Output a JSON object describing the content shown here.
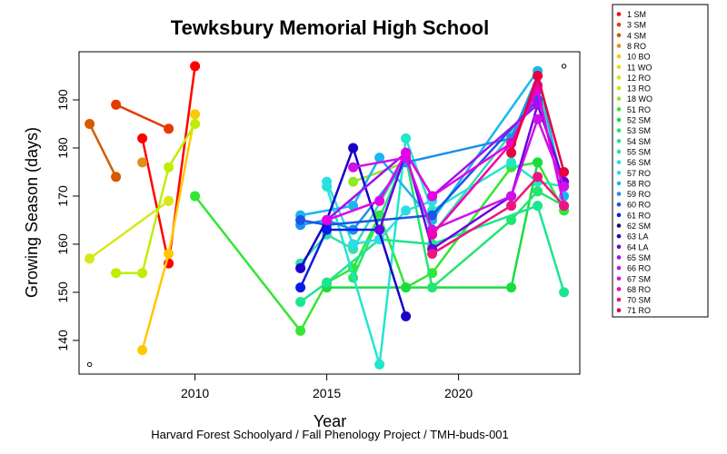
{
  "chart_data": {
    "type": "line",
    "title": "Tewksbury Memorial High School",
    "xlabel": "Year",
    "ylabel": "Growing Season (days)",
    "caption": "Harvard Forest Schoolyard / Fall Phenology Project / TMH-buds-001",
    "xlim": [
      2005.6,
      2024.6
    ],
    "ylim": [
      133,
      200
    ],
    "xticks": [
      2010,
      2015,
      2020
    ],
    "yticks": [
      140,
      150,
      160,
      170,
      180,
      190
    ],
    "grid": false,
    "legend_position": "right-top",
    "reference_points": [
      {
        "x": 2006,
        "y": 135
      },
      {
        "x": 2024,
        "y": 197
      }
    ],
    "series": [
      {
        "name": "1 SM",
        "color": "#FF0000",
        "points": [
          [
            2008,
            182
          ],
          [
            2009,
            156
          ],
          [
            2010,
            197
          ]
        ]
      },
      {
        "name": "3 SM",
        "color": "#E63A00",
        "points": [
          [
            2007,
            189
          ],
          [
            2009,
            184
          ]
        ]
      },
      {
        "name": "4 SM",
        "color": "#D65A00",
        "points": [
          [
            2006,
            185
          ],
          [
            2007,
            174
          ]
        ]
      },
      {
        "name": "8 RO",
        "color": "#E0901A",
        "points": [
          [
            2008,
            177
          ]
        ]
      },
      {
        "name": "10 BO",
        "color": "#FFC800",
        "points": [
          [
            2008,
            138
          ],
          [
            2009,
            158
          ],
          [
            2010,
            187
          ]
        ]
      },
      {
        "name": "11 WO",
        "color": "#F0E000",
        "points": []
      },
      {
        "name": "12 RO",
        "color": "#D8E817",
        "points": [
          [
            2006,
            157
          ],
          [
            2009,
            169
          ]
        ]
      },
      {
        "name": "13 RO",
        "color": "#C0EE00",
        "points": [
          [
            2007,
            154
          ],
          [
            2008,
            154
          ],
          [
            2009,
            176
          ],
          [
            2010,
            185
          ]
        ]
      },
      {
        "name": "18 WO",
        "color": "#8FE82A",
        "points": [
          [
            2016,
            173
          ],
          [
            2018,
            177
          ]
        ]
      },
      {
        "name": "51 RO",
        "color": "#33E633",
        "points": [
          [
            2010,
            170
          ],
          [
            2014,
            142
          ],
          [
            2015,
            152
          ],
          [
            2016,
            155
          ],
          [
            2017,
            166
          ],
          [
            2018,
            151
          ],
          [
            2019,
            154
          ],
          [
            2022,
            176
          ],
          [
            2023,
            177
          ],
          [
            2024,
            167
          ]
        ]
      },
      {
        "name": "52 SM",
        "color": "#19DD3E",
        "points": [
          [
            2015,
            151
          ],
          [
            2018,
            151
          ],
          [
            2022,
            151
          ],
          [
            2023,
            177
          ]
        ]
      },
      {
        "name": "53 SM",
        "color": "#22E66D",
        "points": [
          [
            2016,
            153
          ],
          [
            2018,
            178
          ],
          [
            2019,
            151
          ],
          [
            2022,
            165
          ],
          [
            2023,
            171
          ],
          [
            2024,
            168
          ]
        ]
      },
      {
        "name": "54 SM",
        "color": "#1AE68F",
        "points": [
          [
            2014,
            148
          ],
          [
            2015,
            152
          ],
          [
            2017,
            161
          ],
          [
            2019,
            160
          ],
          [
            2023,
            168
          ],
          [
            2024,
            150
          ]
        ]
      },
      {
        "name": "55 SM",
        "color": "#33DDB0",
        "points": [
          [
            2014,
            156
          ],
          [
            2015,
            162
          ],
          [
            2016,
            159
          ],
          [
            2018,
            178
          ],
          [
            2019,
            162
          ],
          [
            2022,
            183
          ],
          [
            2023,
            193
          ],
          [
            2024,
            172
          ]
        ]
      },
      {
        "name": "56 SM",
        "color": "#22E6CC",
        "points": [
          [
            2015,
            172
          ],
          [
            2017,
            135
          ],
          [
            2018,
            182
          ],
          [
            2019,
            167
          ],
          [
            2022,
            177
          ],
          [
            2023,
            173
          ],
          [
            2024,
            172
          ]
        ]
      },
      {
        "name": "57 RO",
        "color": "#2CDDE6",
        "points": [
          [
            2015,
            173
          ],
          [
            2016,
            160
          ],
          [
            2017,
            161
          ],
          [
            2018,
            167
          ],
          [
            2019,
            169
          ]
        ]
      },
      {
        "name": "58 RO",
        "color": "#1AB6F0",
        "points": [
          [
            2014,
            166
          ],
          [
            2016,
            168
          ],
          [
            2017,
            178
          ],
          [
            2019,
            165
          ],
          [
            2023,
            196
          ],
          [
            2024,
            170
          ]
        ]
      },
      {
        "name": "59 RO",
        "color": "#1A90F0",
        "points": [
          [
            2014,
            164
          ],
          [
            2015,
            165
          ],
          [
            2016,
            163
          ],
          [
            2018,
            177
          ],
          [
            2022,
            182
          ],
          [
            2023,
            195
          ]
        ]
      },
      {
        "name": "60 RO",
        "color": "#1A55E6",
        "points": [
          [
            2014,
            165
          ],
          [
            2015,
            164
          ],
          [
            2019,
            166
          ],
          [
            2023,
            190
          ]
        ]
      },
      {
        "name": "61 RO",
        "color": "#0A1AE6",
        "points": [
          [
            2014,
            151
          ],
          [
            2015,
            163
          ],
          [
            2017,
            163
          ]
        ]
      },
      {
        "name": "62 SM",
        "color": "#10106E",
        "points": []
      },
      {
        "name": "63 LA",
        "color": "#1A00C8",
        "points": [
          [
            2014,
            155
          ],
          [
            2015,
            165
          ],
          [
            2016,
            180
          ],
          [
            2018,
            145
          ]
        ]
      },
      {
        "name": "64 LA",
        "color": "#6A00E6",
        "points": [
          [
            2017,
            163
          ],
          [
            2018,
            179
          ],
          [
            2019,
            159
          ],
          [
            2022,
            170
          ],
          [
            2023,
            189
          ],
          [
            2024,
            173
          ]
        ]
      },
      {
        "name": "65 SM",
        "color": "#A010F0",
        "points": [
          [
            2015,
            165
          ],
          [
            2018,
            179
          ],
          [
            2019,
            170
          ],
          [
            2023,
            189
          ]
        ]
      },
      {
        "name": "66 RO",
        "color": "#D010E6",
        "points": [
          [
            2016,
            176
          ],
          [
            2018,
            178
          ],
          [
            2019,
            163
          ],
          [
            2022,
            170
          ],
          [
            2023,
            186
          ],
          [
            2024,
            172
          ]
        ]
      },
      {
        "name": "67 SM",
        "color": "#E600E6",
        "points": [
          [
            2015,
            165
          ],
          [
            2017,
            169
          ],
          [
            2018,
            179
          ],
          [
            2019,
            170
          ],
          [
            2022,
            181
          ],
          [
            2023,
            192
          ],
          [
            2024,
            168
          ]
        ]
      },
      {
        "name": "68 RO",
        "color": "#F000B4",
        "points": [
          [
            2019,
            162
          ],
          [
            2022,
            181
          ],
          [
            2023,
            193
          ]
        ]
      },
      {
        "name": "70 SM",
        "color": "#EE1480",
        "points": [
          [
            2019,
            158
          ],
          [
            2022,
            168
          ],
          [
            2023,
            174
          ],
          [
            2024,
            168
          ]
        ]
      },
      {
        "name": "71 RO",
        "color": "#E6003C",
        "points": [
          [
            2022,
            179
          ],
          [
            2023,
            195
          ],
          [
            2024,
            175
          ]
        ]
      }
    ]
  }
}
